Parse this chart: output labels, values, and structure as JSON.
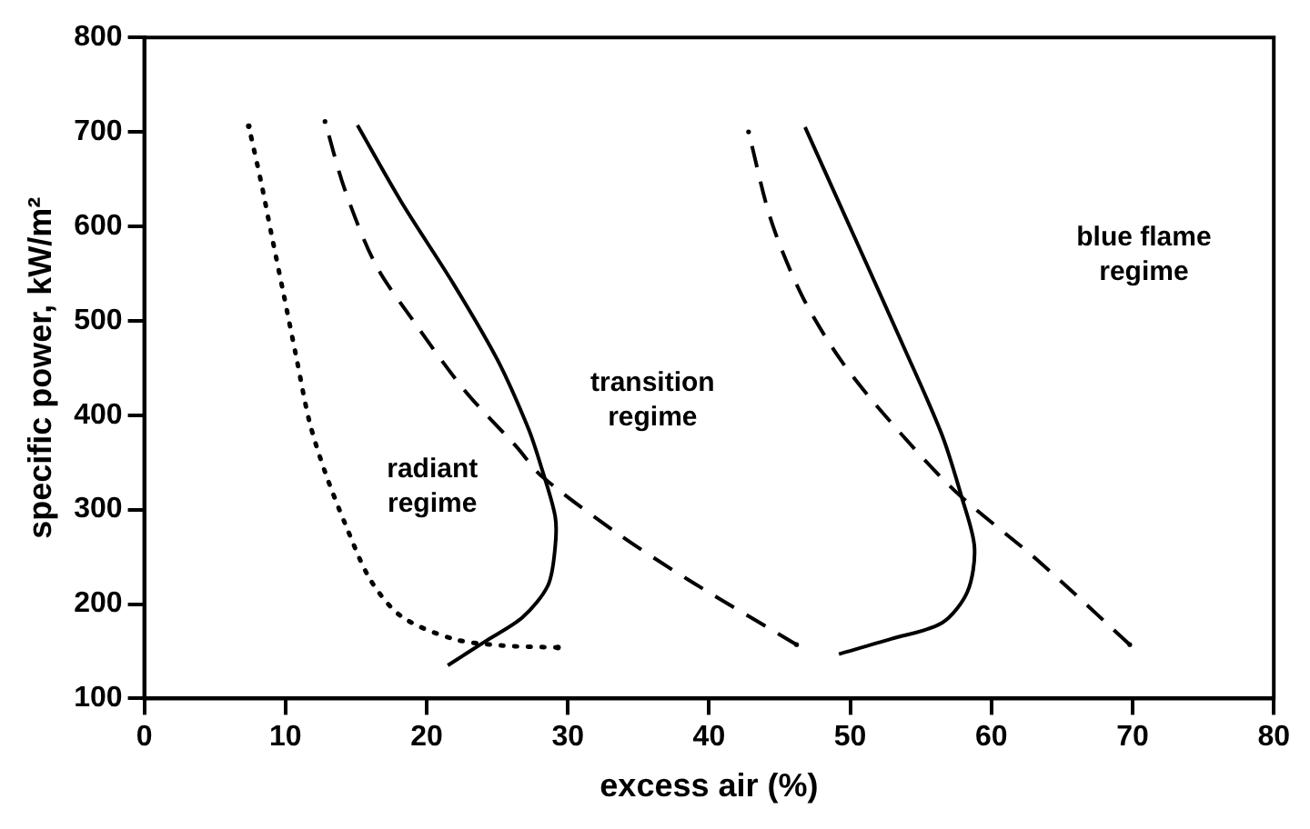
{
  "chart_data": {
    "type": "line",
    "xlabel": "excess air (%)",
    "ylabel": "specific power, kW/m²",
    "xlim": [
      0,
      80
    ],
    "xticks": [
      0,
      10,
      20,
      30,
      40,
      50,
      60,
      70,
      80
    ],
    "ylim": [
      100,
      800
    ],
    "yticks": [
      100,
      200,
      300,
      400,
      500,
      600,
      700,
      800
    ],
    "grid": false,
    "legend": false,
    "marker": "none",
    "series": [
      {
        "color": "#000000",
        "line_style": "dotted",
        "x": [
          29.3,
          25.4,
          21.9,
          18.2,
          16.0,
          14.2,
          12.8,
          11.7,
          10.8,
          9.9,
          9.0,
          8.3,
          7.4
        ],
        "values": [
          154,
          156,
          163,
          187,
          226,
          286,
          340,
          393,
          459,
          526,
          592,
          645,
          706
        ]
      },
      {
        "color": "#000000",
        "line_style": "solid",
        "x": [
          21.5,
          24.1,
          26.8,
          28.6,
          29.1,
          29.1,
          28.1,
          27.2,
          25.0,
          21.9,
          18.2,
          15.1
        ],
        "values": [
          135,
          160,
          186,
          220,
          260,
          293,
          346,
          386,
          459,
          539,
          626,
          707
        ]
      },
      {
        "color": "#000000",
        "line_style": "dashed",
        "x": [
          46.2,
          38.5,
          33.5,
          28.1,
          26.4,
          22.7,
          19.1,
          16.4,
          14.2,
          12.8
        ],
        "values": [
          157,
          226,
          275,
          336,
          366,
          426,
          499,
          559,
          639,
          711
        ]
      },
      {
        "color": "#000000",
        "line_style": "solid",
        "x": [
          49.2,
          52.9,
          56.5,
          58.3,
          58.8,
          57.9,
          56.5,
          53.8,
          50.2,
          46.8
        ],
        "values": [
          147,
          163,
          180,
          213,
          260,
          313,
          379,
          472,
          592,
          705
        ]
      },
      {
        "color": "#000000",
        "line_style": "dashed",
        "x": [
          69.8,
          63.3,
          57.4,
          52.5,
          49.3,
          46.6,
          44.4,
          42.8
        ],
        "values": [
          157,
          246,
          320,
          399,
          459,
          526,
          606,
          700
        ]
      }
    ],
    "annotations": [
      "radiant regime",
      "transition regime",
      "blue flame regime"
    ]
  }
}
